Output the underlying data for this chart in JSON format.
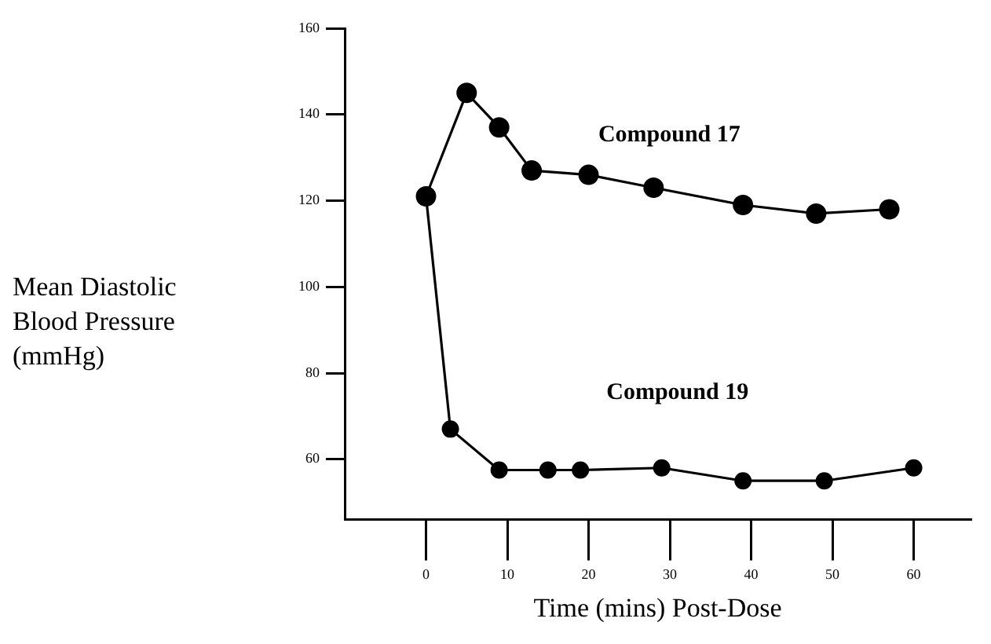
{
  "chart_data": {
    "type": "line",
    "xlabel": "Time (mins) Post-Dose",
    "ylabel": "Mean Diastolic Blood Pressure (mmHg)",
    "xlim": [
      -10,
      67
    ],
    "xticks": [
      0,
      10,
      20,
      30,
      40,
      50,
      60
    ],
    "ylim": [
      46,
      160
    ],
    "yticks": [
      60,
      80,
      100,
      120,
      140,
      160
    ],
    "grid": false,
    "legend": false,
    "marker": "circle",
    "line_style": "solid",
    "series": [
      {
        "name": "Compound 17",
        "color": "#000000",
        "x": [
          0,
          5,
          9,
          13,
          20,
          28,
          39,
          48,
          57
        ],
        "values": [
          121,
          145,
          137,
          127,
          126,
          123,
          119,
          117,
          118
        ]
      },
      {
        "name": "Compound 19",
        "color": "#000000",
        "x": [
          0,
          3,
          9,
          15,
          19,
          29,
          39,
          49,
          60
        ],
        "values": [
          121,
          67,
          57.5,
          57.5,
          57.5,
          58,
          55,
          55,
          58
        ]
      }
    ]
  }
}
